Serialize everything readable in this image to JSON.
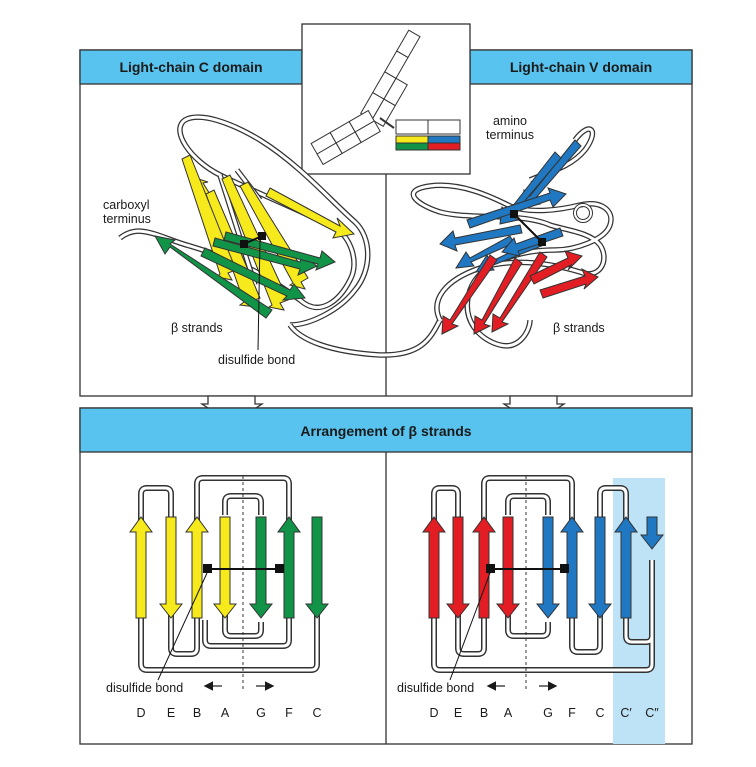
{
  "colors": {
    "header_bg": "#58c3ee",
    "yellow": "#f7ea1c",
    "green": "#119448",
    "blue": "#1f78c1",
    "red": "#e31d24",
    "highlight": "#bfe3f6",
    "frame": "#333333"
  },
  "panels": {
    "c_domain_title": "Light-chain C domain",
    "v_domain_title": "Light-chain V domain",
    "arrangement_title": "Arrangement of β strands"
  },
  "labels": {
    "carboxyl_1": "carboxyl",
    "carboxyl_2": "terminus",
    "amino_1": "amino",
    "amino_2": "terminus",
    "beta_strands_c": "β strands",
    "beta_strands_v": "β strands",
    "disulfide_top": "disulfide bond",
    "disulfide_left": "disulfide bond",
    "disulfide_right": "disulfide bond"
  },
  "strand_letters": {
    "c_domain": [
      "D",
      "E",
      "B",
      "A",
      "G",
      "F",
      "C"
    ],
    "v_domain": [
      "D",
      "E",
      "B",
      "A",
      "G",
      "F",
      "C",
      "C′",
      "C″"
    ]
  }
}
